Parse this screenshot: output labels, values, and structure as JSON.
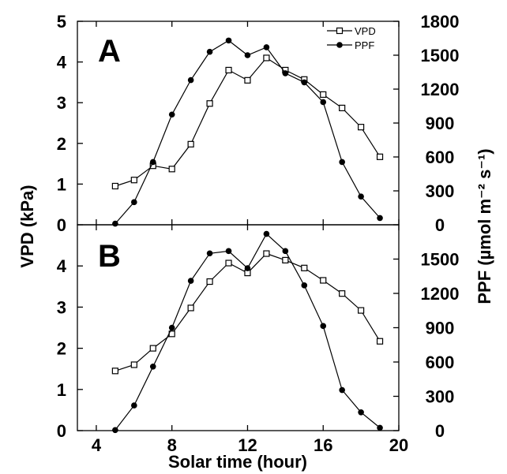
{
  "chart_data": [
    {
      "type": "line",
      "panel_label": "A",
      "x": [
        5,
        6,
        7,
        8,
        9,
        10,
        11,
        12,
        13,
        14,
        15,
        16,
        17,
        18,
        19
      ],
      "series": [
        {
          "name": "VPD",
          "axis": "left",
          "marker": "open-square",
          "values": [
            0.95,
            1.1,
            1.45,
            1.37,
            1.98,
            2.98,
            3.8,
            3.55,
            4.1,
            3.8,
            3.57,
            3.2,
            2.87,
            2.4,
            1.67
          ]
        },
        {
          "name": "PPF",
          "axis": "right",
          "marker": "filled-circle",
          "values": [
            10,
            200,
            555,
            975,
            1280,
            1530,
            1630,
            1500,
            1570,
            1340,
            1260,
            1085,
            555,
            250,
            60
          ]
        }
      ],
      "xlim": [
        3,
        20
      ],
      "ylim_left": [
        0,
        5
      ],
      "ylim_right": [
        0,
        1800
      ],
      "legend": {
        "position": "top-right",
        "entries": [
          "VPD",
          "PPF"
        ]
      }
    },
    {
      "type": "line",
      "panel_label": "B",
      "x": [
        5,
        6,
        7,
        8,
        9,
        10,
        11,
        12,
        13,
        14,
        15,
        16,
        17,
        18,
        19
      ],
      "series": [
        {
          "name": "VPD",
          "axis": "left",
          "marker": "open-square",
          "values": [
            1.45,
            1.6,
            2.0,
            2.35,
            2.98,
            3.62,
            4.07,
            3.83,
            4.3,
            4.14,
            3.95,
            3.65,
            3.33,
            2.92,
            2.17
          ]
        },
        {
          "name": "PPF",
          "axis": "right",
          "marker": "filled-circle",
          "values": [
            5,
            220,
            560,
            900,
            1310,
            1550,
            1570,
            1420,
            1720,
            1570,
            1270,
            915,
            355,
            160,
            25
          ]
        }
      ],
      "xlim": [
        3,
        20
      ],
      "ylim_left": [
        0,
        5
      ],
      "ylim_right": [
        0,
        1800
      ]
    }
  ],
  "axes": {
    "xlabel": "Solar time (hour)",
    "ylabel_left": "VPD (kPa)",
    "ylabel_right": "PPF (µmol m⁻² s⁻¹)",
    "x_ticks": [
      "4",
      "8",
      "12",
      "16",
      "20"
    ],
    "left_ticks_a": [
      "0",
      "1",
      "2",
      "3",
      "4",
      "5"
    ],
    "right_ticks_a": [
      "0",
      "300",
      "600",
      "900",
      "1200",
      "1500",
      "1800"
    ],
    "left_ticks_b": [
      "0",
      "1",
      "2",
      "3",
      "4"
    ],
    "right_ticks_b": [
      "0",
      "300",
      "600",
      "900",
      "1200",
      "1500"
    ]
  },
  "legend": {
    "vpd_label": "VPD",
    "ppf_label": "PPF"
  },
  "colors": {
    "line": "#000000",
    "background": "#ffffff"
  }
}
